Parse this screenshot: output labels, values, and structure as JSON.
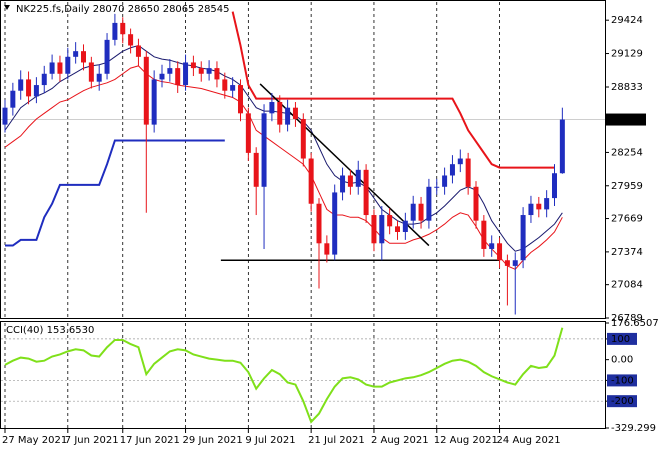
{
  "chart_data": [
    {
      "type": "candlestick",
      "title": "NK225.fs,Daily",
      "categories": [
        "27 May 2021",
        null,
        null,
        null,
        null,
        null,
        null,
        null,
        "7 Jun 2021",
        null,
        null,
        null,
        null,
        null,
        null,
        "17 Jun 2021",
        null,
        null,
        null,
        null,
        null,
        null,
        null,
        "29 Jun 2021",
        null,
        null,
        null,
        null,
        null,
        null,
        null,
        "9 Jul 2021",
        null,
        null,
        null,
        null,
        null,
        null,
        null,
        "21 Jul 2021",
        null,
        null,
        null,
        null,
        null,
        null,
        null,
        "2 Aug 2021",
        null,
        null,
        null,
        null,
        null,
        null,
        null,
        "12 Aug 2021",
        null,
        null,
        null,
        null,
        null,
        null,
        null,
        "24 Aug 2021",
        null,
        null,
        null,
        null,
        null,
        null,
        null,
        null
      ],
      "open": [
        28500,
        28650,
        28800,
        28900,
        28750,
        28850,
        28950,
        29050,
        28950,
        29100,
        29150,
        29050,
        28880,
        28950,
        29250,
        29400,
        29300,
        29200,
        29100,
        28500,
        28900,
        28950,
        29000,
        28850,
        29050,
        29000,
        28950,
        29000,
        28900,
        28800,
        28850,
        28600,
        28250,
        27950,
        28600,
        28700,
        28500,
        28650,
        28550,
        28200,
        27800,
        27450,
        27350,
        27900,
        28050,
        27950,
        28100,
        27700,
        27450,
        27700,
        27600,
        27550,
        27650,
        27800,
        27650,
        27950,
        27950,
        28050,
        28150,
        28200,
        27950,
        27650,
        27400,
        27450,
        27300,
        27250,
        27300,
        27700,
        27800,
        27750,
        27850,
        28070
      ],
      "high": [
        28720,
        28870,
        28980,
        28970,
        28920,
        29020,
        29120,
        29110,
        29180,
        29230,
        29210,
        29100,
        29030,
        29310,
        29480,
        29450,
        29350,
        29260,
        29150,
        28980,
        29030,
        29080,
        29060,
        29120,
        29110,
        29060,
        29070,
        29060,
        28960,
        28920,
        28900,
        28650,
        28300,
        28680,
        28780,
        28760,
        28720,
        28700,
        28600,
        28250,
        27850,
        27520,
        27970,
        28120,
        28100,
        28180,
        28150,
        27750,
        27780,
        27760,
        27650,
        27720,
        27870,
        27860,
        28020,
        28020,
        28120,
        28230,
        28280,
        28250,
        28000,
        27700,
        27520,
        27500,
        27350,
        27370,
        27770,
        27870,
        27860,
        27920,
        28150,
        28650
      ],
      "low": [
        28430,
        28580,
        28720,
        28680,
        28690,
        28780,
        28900,
        28880,
        28900,
        29040,
        28980,
        28820,
        28800,
        28900,
        29200,
        29220,
        29130,
        29020,
        27720,
        28430,
        28830,
        28880,
        28780,
        28800,
        28930,
        28880,
        28890,
        28830,
        28730,
        28740,
        28530,
        28180,
        27700,
        27400,
        28530,
        28430,
        28440,
        28480,
        28130,
        27730,
        27050,
        27280,
        27300,
        27830,
        27880,
        27880,
        27630,
        27380,
        27300,
        27530,
        27480,
        27480,
        27580,
        27580,
        27580,
        27880,
        27880,
        27980,
        28080,
        27880,
        27580,
        27330,
        27330,
        27230,
        26900,
        26820,
        27230,
        27630,
        27680,
        27680,
        27780,
        28065
      ],
      "close": [
        28650,
        28800,
        28900,
        28750,
        28850,
        28950,
        29050,
        28950,
        29100,
        29150,
        29050,
        28880,
        28950,
        29250,
        29400,
        29300,
        29200,
        29100,
        28500,
        28900,
        28950,
        29000,
        28850,
        29050,
        29000,
        28950,
        29000,
        28900,
        28800,
        28850,
        28600,
        28250,
        27950,
        28600,
        28700,
        28500,
        28650,
        28550,
        28200,
        27800,
        27450,
        27350,
        27900,
        28050,
        27950,
        28100,
        27700,
        27450,
        27700,
        27600,
        27550,
        27650,
        27800,
        27650,
        27950,
        27950,
        28050,
        28150,
        28200,
        27950,
        27650,
        27400,
        27450,
        27300,
        27250,
        27300,
        27700,
        27800,
        27750,
        27850,
        28070,
        28545
      ],
      "up_color": "#1f2dbf",
      "down_color": "#e8141a",
      "ylim": [
        26789,
        29585
      ],
      "yticks": [
        29424,
        29129,
        28833,
        28254,
        27959,
        27669,
        27374,
        27084,
        26789
      ],
      "series": [
        {
          "color": "#e8141a",
          "width": 2,
          "values": [
            null,
            null,
            null,
            null,
            null,
            null,
            null,
            null,
            null,
            null,
            null,
            null,
            null,
            null,
            null,
            null,
            null,
            null,
            null,
            null,
            null,
            null,
            null,
            null,
            null,
            null,
            null,
            null,
            null,
            29500,
            29200,
            28850,
            28730,
            28730,
            28730,
            28730,
            28730,
            28730,
            28730,
            28730,
            28730,
            28730,
            28730,
            28730,
            28730,
            28730,
            28730,
            28730,
            28730,
            28730,
            28730,
            28730,
            28730,
            28730,
            28730,
            28730,
            28730,
            28730,
            28600,
            28450,
            28350,
            28250,
            28150,
            28120,
            28120,
            28120,
            28120,
            28120,
            28120,
            28120,
            28120,
            null
          ]
        },
        {
          "color": "#1f2dbf",
          "width": 2,
          "values": [
            27430,
            27430,
            27480,
            27480,
            27480,
            27680,
            27800,
            27967,
            27967,
            27967,
            27967,
            27967,
            27967,
            28150,
            28360,
            28360,
            28360,
            28360,
            28360,
            28360,
            28360,
            28360,
            28360,
            28360,
            28360,
            28360,
            28360,
            28360,
            28360,
            null,
            null,
            null,
            null,
            null,
            null,
            null,
            null,
            null,
            null,
            null,
            null,
            null,
            null,
            null,
            null,
            null,
            null,
            null,
            null,
            null,
            null,
            null,
            null,
            null,
            null,
            null,
            null,
            null,
            null,
            null,
            null,
            null,
            null,
            null,
            null,
            null,
            null,
            null,
            null,
            null,
            null,
            null
          ]
        },
        {
          "color": "#1a1a6e",
          "width": 1,
          "values": [
            28450,
            28550,
            28650,
            28700,
            28750,
            28780,
            28820,
            28880,
            28920,
            28960,
            29000,
            29020,
            29030,
            29050,
            29100,
            29150,
            29180,
            29200,
            29150,
            29100,
            29080,
            29070,
            29050,
            29030,
            29020,
            29000,
            28990,
            28970,
            28930,
            28900,
            28850,
            28750,
            28650,
            28620,
            28620,
            28610,
            28600,
            28580,
            28530,
            28450,
            28300,
            28150,
            28050,
            28000,
            27980,
            27990,
            27950,
            27850,
            27750,
            27700,
            27650,
            27620,
            27620,
            27630,
            27680,
            27720,
            27780,
            27850,
            27920,
            27950,
            27920,
            27800,
            27650,
            27550,
            27450,
            27380,
            27400,
            27450,
            27500,
            27560,
            27620,
            27720
          ]
        },
        {
          "color": "#e8141a",
          "width": 1,
          "values": [
            28300,
            28350,
            28400,
            28480,
            28550,
            28600,
            28650,
            28700,
            28720,
            28760,
            28800,
            28830,
            28850,
            28870,
            28900,
            28950,
            29000,
            29020,
            28950,
            28900,
            28880,
            28870,
            28850,
            28840,
            28830,
            28820,
            28800,
            28780,
            28760,
            28740,
            28700,
            28600,
            28450,
            28400,
            28350,
            28300,
            28250,
            28200,
            28150,
            28050,
            27900,
            27750,
            27700,
            27700,
            27680,
            27680,
            27650,
            27580,
            27500,
            27450,
            27450,
            27450,
            27480,
            27500,
            27530,
            27570,
            27620,
            27680,
            27720,
            27700,
            27600,
            27480,
            27400,
            27330,
            27250,
            27220,
            27300,
            27370,
            27420,
            27480,
            27550,
            27680
          ]
        }
      ],
      "trendlines": [
        {
          "color": "#000000",
          "x": [
            32.5,
            54
          ],
          "values": [
            28860,
            27430
          ]
        },
        {
          "color": "#000000",
          "x": [
            27.5,
            63
          ],
          "values": [
            27300,
            27300
          ]
        }
      ]
    },
    {
      "type": "line",
      "title": "CCI(40)",
      "current_label": "153.6530",
      "color": "#7fe01a",
      "values": [
        -25,
        -5,
        10,
        5,
        -10,
        -5,
        15,
        25,
        40,
        50,
        45,
        20,
        15,
        60,
        95,
        95,
        75,
        60,
        -70,
        -20,
        10,
        40,
        50,
        45,
        25,
        15,
        5,
        0,
        -5,
        -5,
        -15,
        -60,
        -140,
        -90,
        -50,
        -70,
        -110,
        -120,
        -200,
        -300,
        -260,
        -190,
        -130,
        -90,
        -85,
        -95,
        -120,
        -130,
        -130,
        -110,
        -100,
        -90,
        -85,
        -75,
        -60,
        -40,
        -20,
        -5,
        0,
        -10,
        -30,
        -60,
        -80,
        -95,
        -110,
        -120,
        -70,
        -30,
        -40,
        -35,
        20,
        153.653
      ],
      "ylim": [
        -329.299,
        176.6507
      ],
      "yticks": [
        176.6507,
        100,
        {
          "value": 0,
          "label": "0.00"
        },
        -100,
        -200,
        -329.299
      ],
      "levels": [
        100,
        -100,
        -200
      ]
    }
  ]
}
